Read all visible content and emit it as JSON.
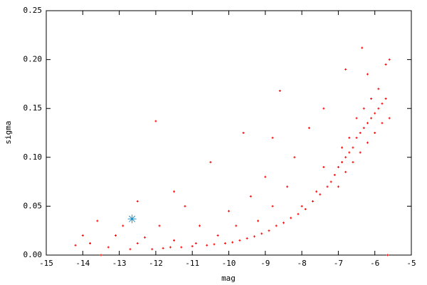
{
  "chart_data": {
    "type": "scatter",
    "xlabel": "mag",
    "ylabel": "sigma",
    "xlim": [
      -15,
      -5
    ],
    "xticks": [
      -15,
      -14,
      -13,
      -12,
      -11,
      -10,
      -9,
      -8,
      -7,
      -6,
      -5
    ],
    "ylim": [
      0,
      0.25
    ],
    "yticks": [
      {
        "value": 0,
        "label": "0.00"
      },
      {
        "value": 0.05,
        "label": "0.05"
      },
      {
        "value": 0.1,
        "label": "0.10"
      },
      {
        "value": 0.15,
        "label": "0.15"
      },
      {
        "value": 0.2,
        "label": "0.20"
      },
      {
        "value": 0.25,
        "label": "0.25"
      }
    ],
    "series": [
      {
        "color": "#ff0000",
        "marker": "plus",
        "x": [
          -14.2,
          -14.0,
          -13.8,
          -13.6,
          -13.3,
          -13.1,
          -12.9,
          -12.7,
          -12.5,
          -12.3,
          -12.1,
          -12.0,
          -11.9,
          -11.8,
          -11.6,
          -11.5,
          -11.3,
          -11.2,
          -11.0,
          -10.9,
          -10.8,
          -10.6,
          -10.5,
          -10.4,
          -10.3,
          -10.1,
          -10.0,
          -9.9,
          -9.8,
          -9.7,
          -9.6,
          -9.5,
          -9.4,
          -9.3,
          -9.2,
          -9.1,
          -9.0,
          -8.9,
          -8.8,
          -8.7,
          -8.6,
          -8.5,
          -8.4,
          -8.3,
          -8.2,
          -8.1,
          -8.0,
          -7.9,
          -7.8,
          -7.7,
          -7.6,
          -7.5,
          -7.4,
          -7.3,
          -7.2,
          -7.1,
          -7.0,
          -7.0,
          -6.9,
          -6.9,
          -6.8,
          -6.8,
          -6.7,
          -6.7,
          -6.6,
          -6.6,
          -6.5,
          -6.5,
          -6.4,
          -6.4,
          -6.35,
          -6.3,
          -6.3,
          -6.2,
          -6.2,
          -6.1,
          -6.1,
          -6.0,
          -6.0,
          -5.9,
          -5.9,
          -5.8,
          -5.8,
          -5.7,
          -5.7,
          -5.6,
          -5.6,
          -5.65,
          -6.2,
          -6.8,
          -7.4,
          -8.8,
          -11.5,
          -12.5,
          -13.5
        ],
        "y": [
          0.01,
          0.02,
          0.012,
          0.035,
          0.008,
          0.02,
          0.03,
          0.006,
          0.012,
          0.018,
          0.006,
          0.137,
          0.03,
          0.007,
          0.008,
          0.015,
          0.008,
          0.05,
          0.009,
          0.012,
          0.03,
          0.01,
          0.095,
          0.011,
          0.02,
          0.012,
          0.045,
          0.013,
          0.03,
          0.015,
          0.125,
          0.017,
          0.06,
          0.019,
          0.035,
          0.022,
          0.08,
          0.025,
          0.05,
          0.03,
          0.168,
          0.033,
          0.07,
          0.038,
          0.1,
          0.042,
          0.05,
          0.047,
          0.13,
          0.055,
          0.065,
          0.062,
          0.09,
          0.07,
          0.075,
          0.082,
          0.09,
          0.07,
          0.095,
          0.11,
          0.1,
          0.085,
          0.105,
          0.12,
          0.11,
          0.095,
          0.12,
          0.14,
          0.125,
          0.105,
          0.212,
          0.13,
          0.15,
          0.135,
          0.115,
          0.14,
          0.16,
          0.145,
          0.125,
          0.15,
          0.17,
          0.155,
          0.135,
          0.16,
          0.195,
          0.14,
          0.2,
          0.0,
          0.185,
          0.19,
          0.15,
          0.12,
          0.065,
          0.055,
          0.0
        ]
      },
      {
        "color": "#1e90c8",
        "marker": "star",
        "x": [
          -12.65
        ],
        "y": [
          0.037
        ]
      }
    ]
  }
}
